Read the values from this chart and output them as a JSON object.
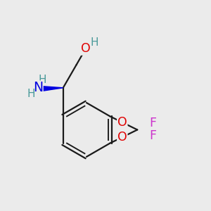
{
  "bg_color": "#ebebeb",
  "bond_color": "#1a1a1a",
  "bond_width": 1.6,
  "atom_colors": {
    "O": "#e00000",
    "N": "#0000e0",
    "F": "#cc33cc",
    "H_dark": "#4a9a9a",
    "H_bond": "#4a9a9a"
  },
  "font_size_atom": 12.5,
  "font_size_H": 11.0,
  "fig_w": 3.0,
  "fig_h": 3.0,
  "dpi": 100,
  "xlim": [
    0,
    10
  ],
  "ylim": [
    0,
    10
  ]
}
